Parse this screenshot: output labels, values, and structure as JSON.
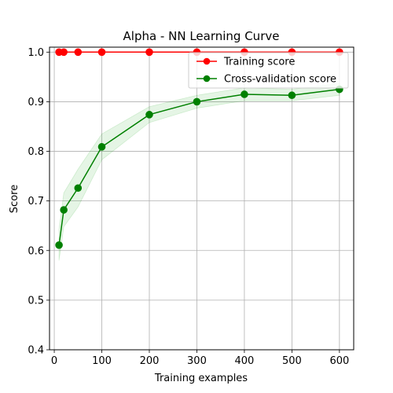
{
  "chart_data": {
    "type": "line",
    "title": "Alpha - NN Learning Curve",
    "xlabel": "Training examples",
    "ylabel": "Score",
    "xlim": [
      -10,
      630
    ],
    "ylim": [
      0.4,
      1.01
    ],
    "xticks": [
      0,
      100,
      200,
      300,
      400,
      500,
      600
    ],
    "yticks": [
      0.4,
      0.5,
      0.6,
      0.7,
      0.8,
      0.9,
      1.0
    ],
    "xtick_labels": [
      "0",
      "100",
      "200",
      "300",
      "400",
      "500",
      "600"
    ],
    "ytick_labels": [
      "0.4",
      "0.5",
      "0.6",
      "0.7",
      "0.8",
      "0.9",
      "1.0"
    ],
    "grid": true,
    "legend_position": "top-right",
    "series": [
      {
        "name": "Training score",
        "color": "#ff0000",
        "marker": "circle",
        "x": [
          10,
          20,
          50,
          100,
          200,
          300,
          400,
          500,
          600
        ],
        "y": [
          1.0,
          1.0,
          1.0,
          1.0,
          1.0,
          1.0,
          1.0,
          1.0,
          1.0
        ],
        "band_lower": [
          1.0,
          1.0,
          1.0,
          1.0,
          1.0,
          1.0,
          1.0,
          1.0,
          1.0
        ],
        "band_upper": [
          1.0,
          1.0,
          1.0,
          1.0,
          1.0,
          1.0,
          1.0,
          1.0,
          1.0
        ]
      },
      {
        "name": "Cross-validation score",
        "color": "#008000",
        "band_color": "#00a000",
        "marker": "circle",
        "x": [
          10,
          20,
          50,
          100,
          200,
          300,
          400,
          500,
          600
        ],
        "y": [
          0.611,
          0.682,
          0.726,
          0.809,
          0.874,
          0.9,
          0.915,
          0.913,
          0.925
        ],
        "band_lower": [
          0.58,
          0.648,
          0.688,
          0.783,
          0.858,
          0.887,
          0.902,
          0.902,
          0.913
        ],
        "band_upper": [
          0.642,
          0.716,
          0.764,
          0.835,
          0.89,
          0.913,
          0.928,
          0.925,
          0.937
        ]
      }
    ]
  }
}
